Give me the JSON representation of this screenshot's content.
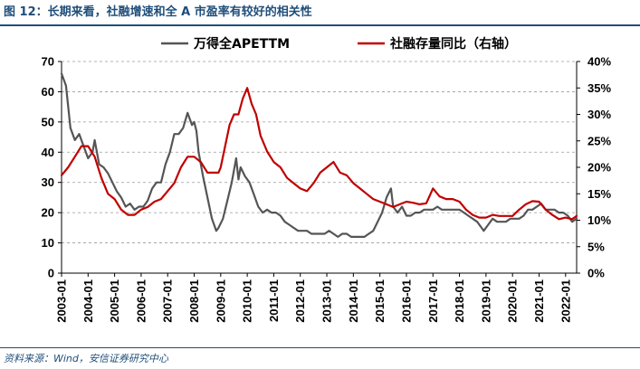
{
  "header": {
    "title": "图 12：长期来看，社融增速和全 A 市盈率有较好的相关性",
    "source": "资料来源：Wind，安信证券研究中心"
  },
  "colors": {
    "pe": "#555555",
    "tsf": "#c00000",
    "accent": "#1f4e79"
  },
  "chart_data": {
    "type": "line",
    "title": "",
    "grid": "horizontal",
    "legend": "top",
    "x_tick_labels": [
      "2003-01",
      "2004-01",
      "2005-01",
      "2006-01",
      "2007-01",
      "2008-01",
      "2009-01",
      "2010-01",
      "2011-01",
      "2012-01",
      "2013-01",
      "2014-01",
      "2015-01",
      "2016-01",
      "2017-01",
      "2018-01",
      "2019-01",
      "2020-01",
      "2021-01",
      "2022-01"
    ],
    "x_range": [
      "2003-01",
      "2022-06"
    ],
    "y_left": {
      "ticks": [
        "0",
        "10",
        "20",
        "30",
        "40",
        "50",
        "60",
        "70"
      ],
      "range": [
        0,
        70
      ]
    },
    "y_right": {
      "ticks": [
        "0%",
        "5%",
        "10%",
        "15%",
        "20%",
        "25%",
        "30%",
        "35%",
        "40%"
      ],
      "range": [
        0,
        40
      ]
    },
    "series": [
      {
        "name": "万得全APETTM",
        "axis": "left",
        "points": [
          [
            "2003-01",
            66
          ],
          [
            "2003-03",
            62
          ],
          [
            "2003-05",
            48
          ],
          [
            "2003-07",
            44
          ],
          [
            "2003-09",
            46
          ],
          [
            "2003-11",
            42
          ],
          [
            "2004-01",
            38
          ],
          [
            "2004-03",
            40
          ],
          [
            "2004-04",
            44
          ],
          [
            "2004-06",
            36
          ],
          [
            "2004-08",
            35
          ],
          [
            "2004-10",
            33
          ],
          [
            "2004-12",
            30
          ],
          [
            "2005-02",
            27
          ],
          [
            "2005-04",
            25
          ],
          [
            "2005-06",
            22
          ],
          [
            "2005-08",
            23
          ],
          [
            "2005-10",
            21
          ],
          [
            "2005-12",
            22
          ],
          [
            "2006-02",
            22
          ],
          [
            "2006-04",
            24
          ],
          [
            "2006-06",
            28
          ],
          [
            "2006-08",
            30
          ],
          [
            "2006-10",
            30
          ],
          [
            "2006-12",
            36
          ],
          [
            "2007-02",
            40
          ],
          [
            "2007-04",
            46
          ],
          [
            "2007-06",
            46
          ],
          [
            "2007-08",
            48
          ],
          [
            "2007-10",
            53
          ],
          [
            "2007-12",
            49
          ],
          [
            "2008-01",
            50
          ],
          [
            "2008-02",
            47
          ],
          [
            "2008-03",
            40
          ],
          [
            "2008-05",
            32
          ],
          [
            "2008-07",
            25
          ],
          [
            "2008-09",
            18
          ],
          [
            "2008-11",
            14
          ],
          [
            "2008-12",
            15
          ],
          [
            "2009-02",
            18
          ],
          [
            "2009-04",
            24
          ],
          [
            "2009-06",
            30
          ],
          [
            "2009-08",
            38
          ],
          [
            "2009-09",
            31
          ],
          [
            "2009-10",
            35
          ],
          [
            "2009-12",
            32
          ],
          [
            "2010-02",
            30
          ],
          [
            "2010-04",
            26
          ],
          [
            "2010-06",
            22
          ],
          [
            "2010-08",
            20
          ],
          [
            "2010-10",
            21
          ],
          [
            "2010-12",
            20
          ],
          [
            "2011-02",
            20
          ],
          [
            "2011-04",
            19
          ],
          [
            "2011-06",
            17
          ],
          [
            "2011-08",
            16
          ],
          [
            "2011-10",
            15
          ],
          [
            "2011-12",
            14
          ],
          [
            "2012-02",
            14
          ],
          [
            "2012-04",
            14
          ],
          [
            "2012-06",
            13
          ],
          [
            "2012-08",
            13
          ],
          [
            "2012-10",
            13
          ],
          [
            "2012-12",
            13
          ],
          [
            "2013-02",
            14
          ],
          [
            "2013-04",
            13
          ],
          [
            "2013-06",
            12
          ],
          [
            "2013-08",
            13
          ],
          [
            "2013-10",
            13
          ],
          [
            "2013-12",
            12
          ],
          [
            "2014-02",
            12
          ],
          [
            "2014-04",
            12
          ],
          [
            "2014-06",
            12
          ],
          [
            "2014-08",
            13
          ],
          [
            "2014-10",
            14
          ],
          [
            "2014-12",
            17
          ],
          [
            "2015-02",
            20
          ],
          [
            "2015-04",
            25
          ],
          [
            "2015-06",
            28
          ],
          [
            "2015-07",
            22
          ],
          [
            "2015-09",
            20
          ],
          [
            "2015-11",
            22
          ],
          [
            "2016-01",
            19
          ],
          [
            "2016-03",
            19
          ],
          [
            "2016-05",
            20
          ],
          [
            "2016-07",
            20
          ],
          [
            "2016-09",
            21
          ],
          [
            "2016-11",
            21
          ],
          [
            "2017-01",
            21
          ],
          [
            "2017-03",
            22
          ],
          [
            "2017-05",
            21
          ],
          [
            "2017-07",
            21
          ],
          [
            "2017-09",
            21
          ],
          [
            "2017-11",
            21
          ],
          [
            "2018-01",
            21
          ],
          [
            "2018-03",
            20
          ],
          [
            "2018-05",
            19
          ],
          [
            "2018-07",
            18
          ],
          [
            "2018-09",
            17
          ],
          [
            "2018-11",
            15
          ],
          [
            "2018-12",
            14
          ],
          [
            "2019-02",
            16
          ],
          [
            "2019-04",
            18
          ],
          [
            "2019-06",
            17
          ],
          [
            "2019-08",
            17
          ],
          [
            "2019-10",
            17
          ],
          [
            "2019-12",
            18
          ],
          [
            "2020-02",
            18
          ],
          [
            "2020-04",
            18
          ],
          [
            "2020-06",
            19
          ],
          [
            "2020-08",
            21
          ],
          [
            "2020-10",
            21
          ],
          [
            "2020-12",
            22
          ],
          [
            "2021-02",
            23
          ],
          [
            "2021-04",
            21
          ],
          [
            "2021-06",
            21
          ],
          [
            "2021-08",
            21
          ],
          [
            "2021-10",
            20
          ],
          [
            "2021-12",
            20
          ],
          [
            "2022-02",
            19
          ],
          [
            "2022-04",
            17
          ],
          [
            "2022-06",
            18
          ]
        ]
      },
      {
        "name": "社融存量同比（右轴）",
        "axis": "right",
        "points": [
          [
            "2003-01",
            18.5
          ],
          [
            "2003-04",
            20
          ],
          [
            "2003-07",
            22
          ],
          [
            "2003-10",
            24
          ],
          [
            "2004-01",
            24
          ],
          [
            "2004-04",
            22
          ],
          [
            "2004-07",
            18
          ],
          [
            "2004-10",
            15
          ],
          [
            "2005-01",
            14
          ],
          [
            "2005-04",
            12
          ],
          [
            "2005-07",
            11
          ],
          [
            "2005-10",
            11
          ],
          [
            "2006-01",
            12
          ],
          [
            "2006-04",
            12.5
          ],
          [
            "2006-07",
            13.5
          ],
          [
            "2006-10",
            14
          ],
          [
            "2007-01",
            15.5
          ],
          [
            "2007-04",
            17
          ],
          [
            "2007-07",
            20
          ],
          [
            "2007-10",
            22
          ],
          [
            "2008-01",
            22
          ],
          [
            "2008-04",
            21
          ],
          [
            "2008-07",
            19
          ],
          [
            "2008-10",
            19
          ],
          [
            "2008-12",
            19
          ],
          [
            "2009-01",
            20
          ],
          [
            "2009-03",
            24
          ],
          [
            "2009-05",
            28
          ],
          [
            "2009-07",
            30
          ],
          [
            "2009-09",
            30
          ],
          [
            "2009-11",
            33
          ],
          [
            "2010-01",
            35
          ],
          [
            "2010-03",
            32
          ],
          [
            "2010-05",
            30
          ],
          [
            "2010-07",
            26
          ],
          [
            "2010-10",
            23
          ],
          [
            "2011-01",
            21
          ],
          [
            "2011-04",
            20
          ],
          [
            "2011-07",
            18
          ],
          [
            "2011-10",
            17
          ],
          [
            "2012-01",
            16
          ],
          [
            "2012-04",
            15.5
          ],
          [
            "2012-07",
            17
          ],
          [
            "2012-10",
            19
          ],
          [
            "2013-01",
            20
          ],
          [
            "2013-04",
            21
          ],
          [
            "2013-07",
            19
          ],
          [
            "2013-10",
            18.5
          ],
          [
            "2014-01",
            17
          ],
          [
            "2014-04",
            16
          ],
          [
            "2014-07",
            15
          ],
          [
            "2014-10",
            14
          ],
          [
            "2015-01",
            13.5
          ],
          [
            "2015-04",
            13
          ],
          [
            "2015-07",
            12.5
          ],
          [
            "2015-10",
            13
          ],
          [
            "2016-01",
            13.5
          ],
          [
            "2016-04",
            13.3
          ],
          [
            "2016-07",
            13
          ],
          [
            "2016-10",
            13.2
          ],
          [
            "2017-01",
            16
          ],
          [
            "2017-04",
            14.5
          ],
          [
            "2017-07",
            14
          ],
          [
            "2017-10",
            14
          ],
          [
            "2018-01",
            13.5
          ],
          [
            "2018-04",
            12
          ],
          [
            "2018-07",
            11
          ],
          [
            "2018-10",
            10.5
          ],
          [
            "2019-01",
            10.5
          ],
          [
            "2019-04",
            11
          ],
          [
            "2019-07",
            10.8
          ],
          [
            "2019-10",
            10.8
          ],
          [
            "2020-01",
            10.8
          ],
          [
            "2020-04",
            12
          ],
          [
            "2020-07",
            13
          ],
          [
            "2020-10",
            13.6
          ],
          [
            "2021-01",
            13.5
          ],
          [
            "2021-04",
            12
          ],
          [
            "2021-07",
            11
          ],
          [
            "2021-10",
            10.2
          ],
          [
            "2022-01",
            10.5
          ],
          [
            "2022-04",
            10.2
          ],
          [
            "2022-06",
            10.8
          ]
        ]
      }
    ]
  }
}
